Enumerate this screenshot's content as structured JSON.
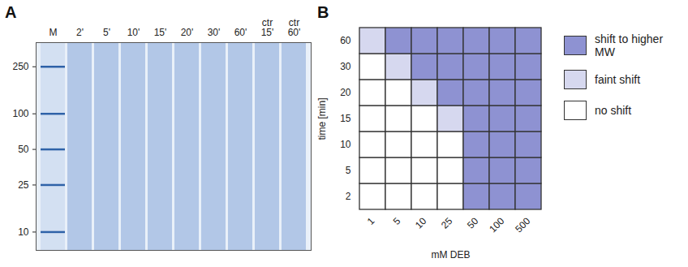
{
  "chart_data": [
    {
      "type": "gel",
      "panel_label": "A",
      "categories": [
        "M",
        "2'",
        "5'",
        "10'",
        "15'",
        "20'",
        "30'",
        "60'",
        "ctr 15'",
        "ctr 60'"
      ],
      "log": "y",
      "ylim": [
        7,
        400
      ],
      "yticks": [
        10,
        25,
        50,
        100,
        250
      ]
    },
    {
      "type": "heatmap",
      "panel_label": "B",
      "x_label": "mM DEB",
      "y_label": "time [min]",
      "x_categories": [
        "1",
        "5",
        "10",
        "25",
        "50",
        "100",
        "500"
      ],
      "y_categories": [
        "2",
        "5",
        "10",
        "15",
        "20",
        "30",
        "60"
      ],
      "levels": [
        {
          "name": "shift to higher MW",
          "color": "#8e92d2"
        },
        {
          "name": "faint shift",
          "color": "#d6d8ef"
        },
        {
          "name": "no shift",
          "color": "#ffffff"
        }
      ],
      "cells": [
        [
          "no shift",
          "no shift",
          "no shift",
          "no shift",
          "shift to higher MW",
          "shift to higher MW",
          "shift to higher MW"
        ],
        [
          "no shift",
          "no shift",
          "no shift",
          "no shift",
          "shift to higher MW",
          "shift to higher MW",
          "shift to higher MW"
        ],
        [
          "no shift",
          "no shift",
          "no shift",
          "no shift",
          "shift to higher MW",
          "shift to higher MW",
          "shift to higher MW"
        ],
        [
          "no shift",
          "no shift",
          "no shift",
          "faint shift",
          "shift to higher MW",
          "shift to higher MW",
          "shift to higher MW"
        ],
        [
          "no shift",
          "no shift",
          "faint shift",
          "shift to higher MW",
          "shift to higher MW",
          "shift to higher MW",
          "shift to higher MW"
        ],
        [
          "no shift",
          "faint shift",
          "shift to higher MW",
          "shift to higher MW",
          "shift to higher MW",
          "shift to higher MW",
          "shift to higher MW"
        ],
        [
          "faint shift",
          "shift to higher MW",
          "shift to higher MW",
          "shift to higher MW",
          "shift to higher MW",
          "shift to higher MW",
          "shift to higher MW"
        ]
      ],
      "legend": "right"
    }
  ]
}
